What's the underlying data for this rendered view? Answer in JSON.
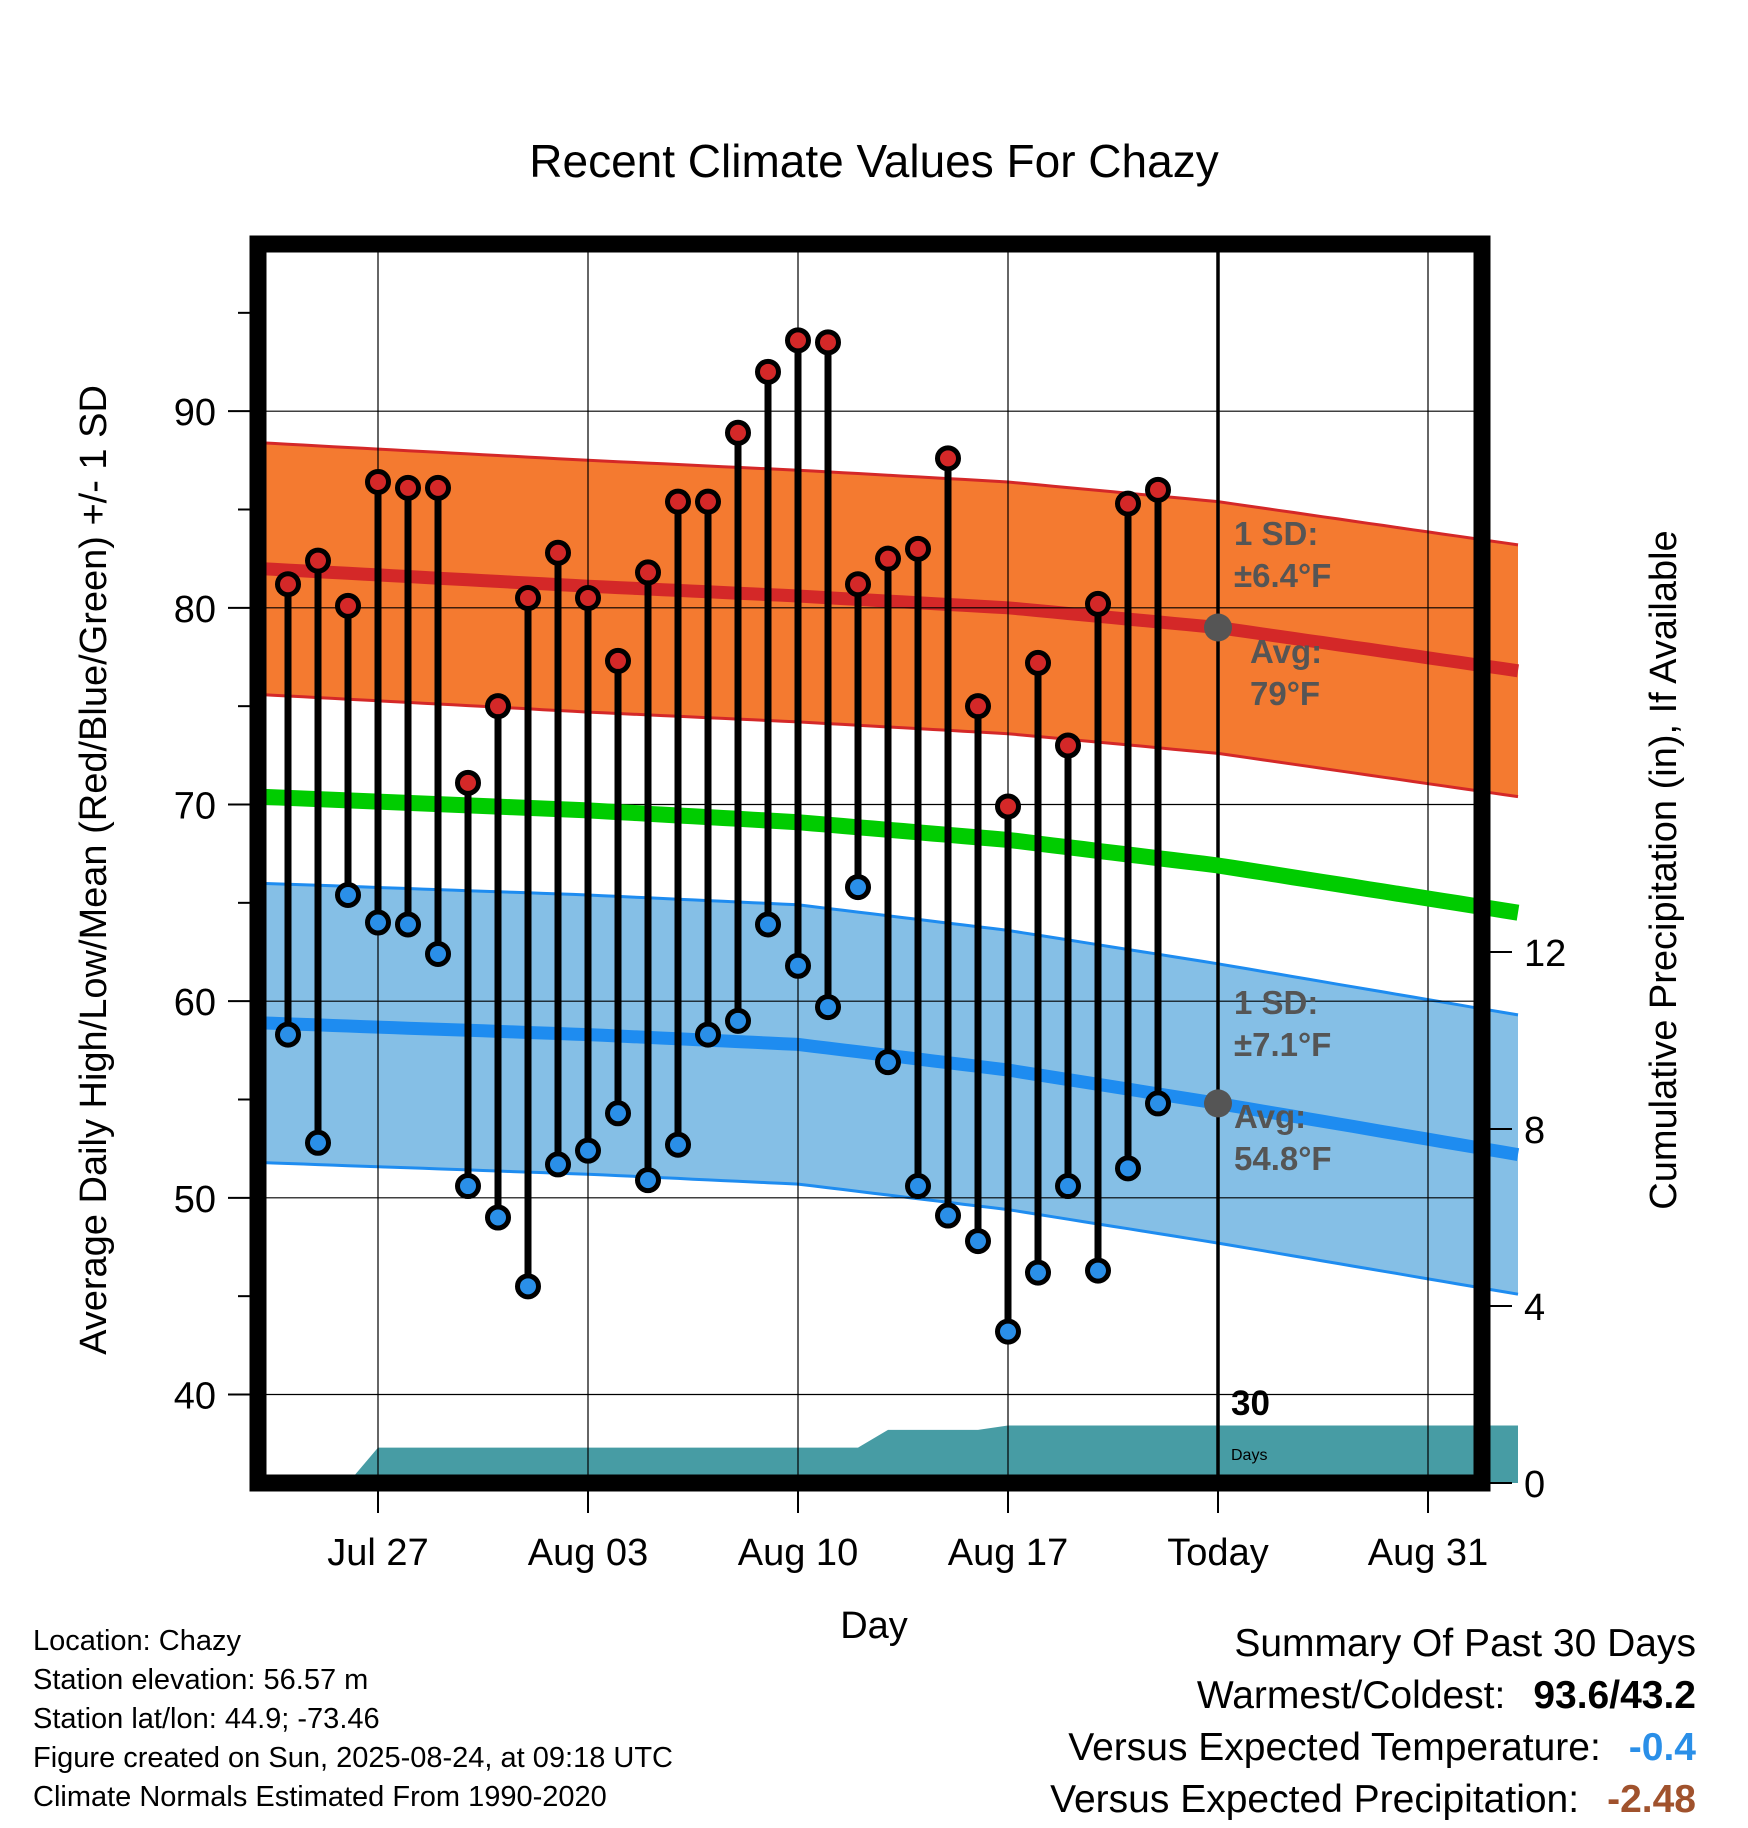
{
  "chart_data": {
    "type": "line",
    "title": "Recent Climate Values For Chazy",
    "xlabel": "Day",
    "ylabel_left": "Average Daily High/Low/Mean (Red/Blue/Green) +/- 1 SD",
    "ylabel_right": "Cumulative Precipitation (in), If Available",
    "x_tick_labels": [
      "Jul 27",
      "Aug 03",
      "Aug 10",
      "Aug 17",
      "Today",
      "Aug 31"
    ],
    "y_left_ticks": [
      40,
      50,
      60,
      70,
      80,
      90
    ],
    "y_left_range": [
      35.5,
      98.5
    ],
    "y_right_ticks": [
      0,
      4,
      8,
      12
    ],
    "y_right_range": [
      0,
      28
    ],
    "x_range_days": [
      "2025-07-23",
      "2025-09-03"
    ],
    "today": "2025-08-24",
    "grid": true,
    "daily": {
      "dates": [
        "2025-07-24",
        "2025-07-25",
        "2025-07-26",
        "2025-07-27",
        "2025-07-28",
        "2025-07-29",
        "2025-07-30",
        "2025-07-31",
        "2025-08-01",
        "2025-08-02",
        "2025-08-03",
        "2025-08-04",
        "2025-08-05",
        "2025-08-06",
        "2025-08-07",
        "2025-08-08",
        "2025-08-09",
        "2025-08-10",
        "2025-08-11",
        "2025-08-12",
        "2025-08-13",
        "2025-08-14",
        "2025-08-15",
        "2025-08-16",
        "2025-08-17",
        "2025-08-18",
        "2025-08-19",
        "2025-08-20",
        "2025-08-21",
        "2025-08-22",
        "2025-08-23"
      ],
      "high": [
        81.2,
        82.4,
        80.1,
        86.4,
        86.1,
        86.1,
        71.1,
        75.0,
        80.5,
        82.8,
        80.5,
        77.3,
        81.8,
        85.4,
        85.4,
        88.9,
        92.0,
        93.6,
        93.5,
        81.2,
        82.5,
        83.0,
        87.6,
        75.0,
        69.9,
        77.2,
        73.0,
        80.2,
        85.3,
        86.0,
        null
      ],
      "low": [
        58.3,
        52.8,
        65.4,
        64.0,
        63.9,
        62.4,
        50.6,
        49.0,
        45.5,
        51.7,
        52.4,
        54.3,
        50.9,
        52.7,
        58.3,
        59.0,
        63.9,
        61.8,
        59.7,
        65.8,
        56.9,
        50.6,
        49.1,
        47.8,
        43.2,
        46.2,
        50.6,
        46.3,
        51.5,
        54.8,
        null
      ]
    },
    "normals": {
      "dates": [
        "2025-07-23",
        "2025-08-03",
        "2025-08-10",
        "2025-08-17",
        "2025-08-24",
        "2025-09-03"
      ],
      "avg_high": [
        82.0,
        81.1,
        80.6,
        80.0,
        79.0,
        76.8
      ],
      "high_sd": 6.4,
      "avg_low": [
        58.9,
        58.3,
        57.8,
        56.5,
        54.8,
        52.2
      ],
      "low_sd": 7.1,
      "avg_mean": [
        70.4,
        69.7,
        69.1,
        68.2,
        66.9,
        64.5
      ]
    },
    "precip": {
      "steps": [
        {
          "date": "2025-07-26",
          "value": 0.0
        },
        {
          "date": "2025-07-27",
          "value": 0.8
        },
        {
          "date": "2025-08-12",
          "value": 0.8
        },
        {
          "date": "2025-08-13",
          "value": 1.2
        },
        {
          "date": "2025-08-16",
          "value": 1.2
        },
        {
          "date": "2025-08-17",
          "value": 1.3
        },
        {
          "date": "2025-09-03",
          "value": 1.3
        }
      ]
    },
    "annotations": {
      "high_sd_label": "1 SD:",
      "high_sd_value": "±6.4°F",
      "high_avg_label": "Avg:",
      "high_avg_value": "79°F",
      "low_sd_label": "1 SD:",
      "low_sd_value": "±7.1°F",
      "low_avg_label": "Avg:",
      "low_avg_value": "54.8°F",
      "days_line1": "30",
      "days_line2": "Days"
    },
    "colors": {
      "high_band": "#f47a30",
      "high_line": "#d42828",
      "low_band": "#85bfe6",
      "low_line": "#1e8cf0",
      "mean_line": "#00cc00",
      "precip_fill": "#479ca4",
      "high_marker": "#d42828",
      "low_marker": "#2a8fe8",
      "today_marker": "#555555"
    }
  },
  "footer": {
    "location": "Location: Chazy",
    "elevation": "Station elevation: 56.57 m",
    "latlon": "Station lat/lon: 44.9; -73.46",
    "created": "Figure created on Sun, 2025-08-24, at 09:18 UTC",
    "normals": "Climate Normals Estimated From 1990-2020"
  },
  "summary": {
    "title": "Summary Of Past 30 Days",
    "warmest_coldest_label": "Warmest/Coldest:",
    "warmest_coldest_value": "93.6/43.2",
    "temp_label": "Versus Expected Temperature:",
    "temp_value": "-0.4",
    "temp_color": "#2a8fe8",
    "precip_label": "Versus Expected Precipitation:",
    "precip_value": "-2.48",
    "precip_color": "#a0522d"
  }
}
